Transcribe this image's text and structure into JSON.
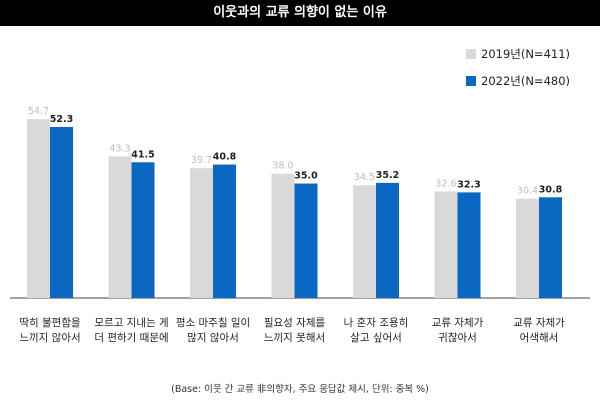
{
  "chart_data": {
    "type": "bar",
    "title": "이웃과의 교류 의향이 없는 이유",
    "categories": [
      [
        "딱히 불편함을",
        "느끼지 않아서"
      ],
      [
        "모르고 지내는 게",
        "더 편하기 때문에"
      ],
      [
        "평소 마주칠 일이",
        "많지 않아서"
      ],
      [
        "필요성 자체를",
        "느끼지 못해서"
      ],
      [
        "나 혼자 조용히",
        "살고 싶어서"
      ],
      [
        "교류 자체가",
        "귀찮아서"
      ],
      [
        "교류 자체가",
        "어색해서"
      ]
    ],
    "series": [
      {
        "name": "2019년(N=411)",
        "color": "#d9d9d9",
        "values": [
          54.7,
          43.3,
          39.7,
          38.0,
          34.5,
          32.6,
          30.4
        ],
        "labels": [
          "54.7",
          "43.3",
          "39.7",
          "38.0",
          "34.5",
          "32.6",
          "30.4"
        ]
      },
      {
        "name": "2022년(N=480)",
        "color": "#0a67c2",
        "values": [
          52.3,
          41.5,
          40.8,
          35.0,
          35.2,
          32.3,
          30.8
        ],
        "labels": [
          "52.3",
          "41.5",
          "40.8",
          "35.0",
          "35.2",
          "32.3",
          "30.8"
        ]
      }
    ],
    "ylim": [
      0,
      60
    ],
    "grid": false,
    "legend_position": "top-right"
  },
  "note": "(Base: 이웃 간 교류 非의향자, 주요 응답값 제시, 단위: 중복 %)"
}
